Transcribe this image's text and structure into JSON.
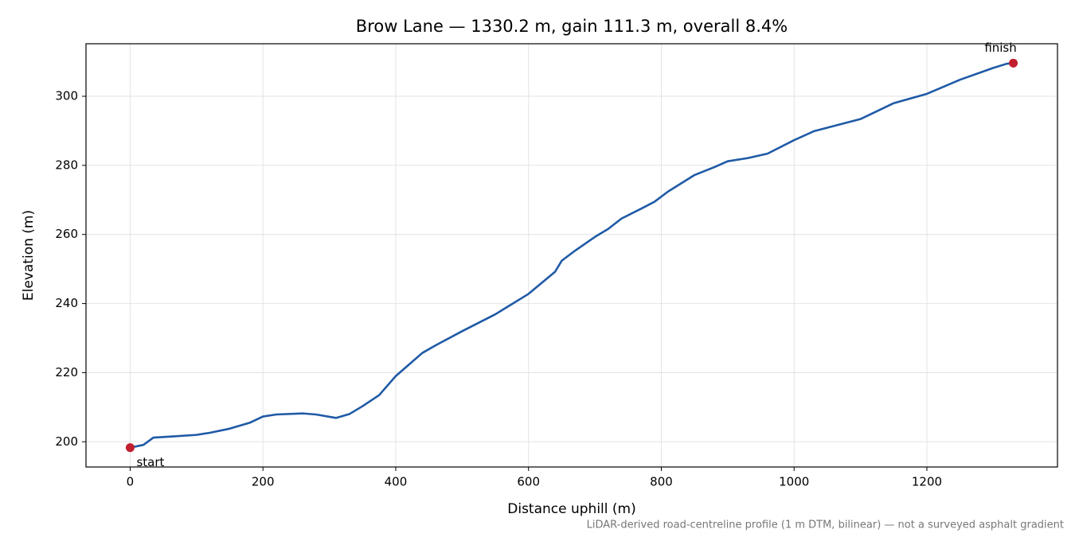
{
  "chart_data": {
    "type": "line",
    "title": "Brow Lane — 1330.2 m, gain 111.3 m, overall 8.4%",
    "x_label": "Distance uphill (m)",
    "y_label": "Elevation (m)",
    "note": "LiDAR-derived road-centreline profile (1 m DTM, bilinear) — not a surveyed asphalt gradient",
    "x": [
      0,
      20,
      35,
      60,
      100,
      120,
      150,
      180,
      200,
      220,
      260,
      280,
      310,
      330,
      350,
      375,
      400,
      440,
      460,
      500,
      550,
      600,
      640,
      650,
      670,
      700,
      720,
      740,
      770,
      790,
      810,
      850,
      880,
      900,
      930,
      960,
      1000,
      1030,
      1100,
      1150,
      1200,
      1250,
      1300,
      1320,
      1330.2
    ],
    "series": [
      {
        "name": "Elevation",
        "color": "#1f5aa6",
        "values": [
          198.3,
          199.1,
          201.2,
          201.5,
          202.0,
          202.6,
          203.8,
          205.5,
          207.3,
          207.9,
          208.2,
          207.9,
          206.9,
          208.0,
          210.3,
          213.5,
          219.0,
          225.7,
          227.9,
          232.0,
          236.9,
          242.8,
          249.2,
          252.4,
          255.3,
          259.3,
          261.6,
          264.6,
          267.5,
          269.5,
          272.4,
          277.2,
          279.5,
          281.2,
          282.1,
          283.4,
          287.3,
          289.9,
          293.4,
          298.0,
          300.7,
          304.8,
          308.2,
          309.4,
          309.6
        ]
      }
    ],
    "endpoint_labels": [
      "start",
      "finish"
    ],
    "endpoint_color": "#c0202e",
    "xlim": [
      -66.51,
      1396.71
    ],
    "ylim": [
      192.7,
      315.2
    ],
    "xticks": [
      0,
      200,
      400,
      600,
      800,
      1000,
      1200
    ],
    "yticks": [
      200,
      220,
      240,
      260,
      280,
      300
    ],
    "grid": true
  }
}
